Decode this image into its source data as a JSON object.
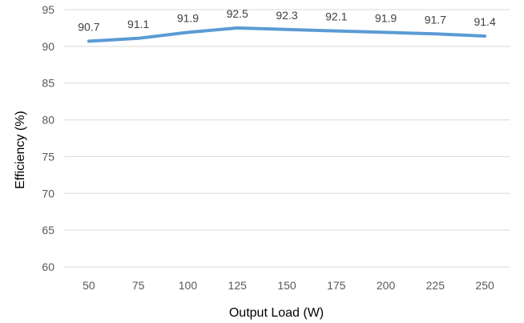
{
  "chart_data": {
    "type": "line",
    "title": "",
    "xlabel": "Output Load (W)",
    "ylabel": "Efficiency (%)",
    "categories": [
      "50",
      "75",
      "100",
      "125",
      "150",
      "175",
      "200",
      "225",
      "250"
    ],
    "series": [
      {
        "values": [
          90.7,
          91.1,
          91.9,
          92.5,
          92.3,
          92.1,
          91.9,
          91.7,
          91.4
        ],
        "labels": [
          "90.7",
          "91.1",
          "91.9",
          "92.5",
          "92.3",
          "92.1",
          "91.9",
          "91.7",
          "91.4"
        ],
        "color": "#5B9BD5"
      }
    ],
    "ylim": [
      60,
      95
    ],
    "yticks": [
      "60",
      "65",
      "70",
      "75",
      "80",
      "85",
      "90",
      "95"
    ],
    "grid": true,
    "gridColor": "#D9D9D9",
    "legend": "none"
  }
}
